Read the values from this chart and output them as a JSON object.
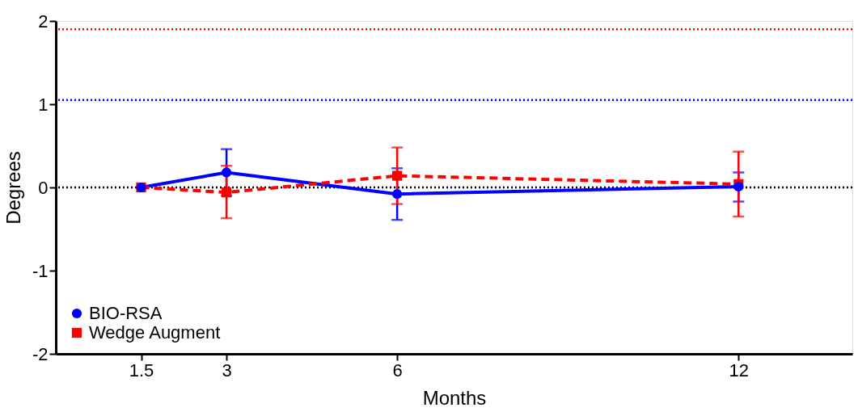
{
  "chart_data": {
    "type": "line",
    "xlabel": "Months",
    "ylabel": "Degrees",
    "x": [
      1.5,
      3,
      6,
      12
    ],
    "series": [
      {
        "name": "BIO-RSA",
        "color": "#0000ff",
        "marker": "circle",
        "line_style": "solid",
        "values": [
          0,
          0.18,
          -0.08,
          0.01
        ],
        "errors": [
          null,
          [
            -0.1,
            0.46
          ],
          [
            -0.39,
            0.23
          ],
          [
            -0.17,
            0.18
          ]
        ]
      },
      {
        "name": "Wedge Augment",
        "color": "#ff0000",
        "marker": "square",
        "line_style": "dashed",
        "values": [
          0,
          -0.06,
          0.14,
          0.04
        ],
        "errors": [
          null,
          [
            -0.37,
            0.26
          ],
          [
            -0.2,
            0.48
          ],
          [
            -0.35,
            0.43
          ]
        ]
      }
    ],
    "ref_lines": [
      {
        "axis": "y",
        "value": 1.9,
        "color": "#ff0000",
        "line_style": "dotted"
      },
      {
        "axis": "y",
        "value": 1.05,
        "color": "#0000ff",
        "line_style": "dotted"
      },
      {
        "axis": "y",
        "value": 0,
        "color": "#000000",
        "line_style": "dotted"
      }
    ],
    "xlim": [
      0,
      14
    ],
    "xticks": [
      1.5,
      3,
      6,
      12
    ],
    "ylim": [
      -2,
      2
    ],
    "yticks": [
      -2,
      -1,
      0,
      1,
      2
    ],
    "grid": false,
    "legend": "bottom left"
  }
}
